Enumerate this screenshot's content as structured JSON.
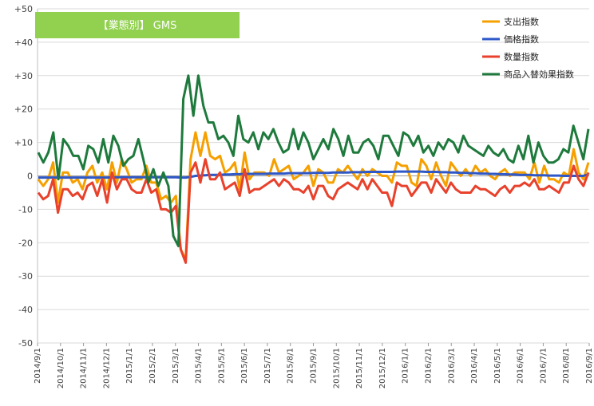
{
  "chart_data": {
    "type": "line",
    "title": "【業態別】 GMS",
    "ylim": [
      -50,
      50
    ],
    "yticks": [
      50,
      40,
      30,
      20,
      10,
      0,
      -10,
      -20,
      -30,
      -40,
      -50
    ],
    "ytick_labels": [
      "+50",
      "+40",
      "+30",
      "+20",
      "+10",
      "0",
      "-10",
      "-20",
      "-30",
      "-40",
      "-50"
    ],
    "x_tick_labels": [
      "2014/9/1",
      "2014/10/1",
      "2014/11/1",
      "2014/12/1",
      "2015/1/1",
      "2015/2/1",
      "2015/3/1",
      "2015/4/1",
      "2015/5/1",
      "2015/6/1",
      "2015/7/1",
      "2015/8/1",
      "2015/9/1",
      "2015/10/1",
      "2015/11/1",
      "2015/12/1",
      "2016/1/1",
      "2016/2/1",
      "2016/3/1",
      "2016/4/1",
      "2016/5/1",
      "2016/6/1",
      "2016/7/1",
      "2016/8/1",
      "2016/9/1"
    ],
    "grid": true,
    "legend_position": "top-right",
    "title_box_color": "#92d050",
    "series": [
      {
        "name": "支出指数",
        "color": "#f5a000",
        "values": [
          -1,
          -3,
          -1,
          4,
          -8,
          1,
          1,
          -2,
          -1,
          -4,
          1,
          3,
          -2,
          1,
          -4,
          4,
          -2,
          5,
          2,
          -2,
          -1,
          -1,
          3,
          -2,
          -2,
          -7,
          -6,
          -8,
          -6,
          -22,
          -25,
          5,
          13,
          6,
          13,
          6,
          5,
          6,
          1,
          2,
          4,
          -4,
          7,
          -1,
          1,
          1,
          1,
          0,
          5,
          1,
          2,
          3,
          -1,
          0,
          1,
          3,
          -3,
          2,
          1,
          -2,
          -2,
          2,
          1,
          3,
          1,
          -1,
          2,
          0,
          2,
          1,
          0,
          0,
          -2,
          4,
          3,
          3,
          -2,
          -3,
          5,
          3,
          -1,
          4,
          0,
          -3,
          4,
          2,
          0,
          2,
          0,
          3,
          1,
          2,
          0,
          -1,
          1,
          2,
          0,
          1,
          1,
          1,
          -1,
          4,
          -2,
          3,
          -1,
          -1,
          -2,
          1,
          0,
          8,
          1,
          -1,
          4
        ]
      },
      {
        "name": "価格指数",
        "color": "#2e58c8",
        "values": [
          -0.5,
          -0.5,
          -0.5,
          -0.5,
          -0.5,
          -0.5,
          -0.5,
          -0.5,
          -0.5,
          -0.5,
          -0.5,
          -0.5,
          -0.5,
          -0.5,
          -0.5,
          -0.4,
          -0.4,
          -0.4,
          -0.4,
          -0.4,
          -0.4,
          -0.4,
          -0.4,
          -0.4,
          -0.4,
          -0.4,
          -0.4,
          -0.4,
          -0.4,
          -0.5,
          -0.5,
          -0.3,
          0,
          0.1,
          0.2,
          0.3,
          0.3,
          0.3,
          0.4,
          0.4,
          0.5,
          0.5,
          0.6,
          0.6,
          0.6,
          0.6,
          0.6,
          0.7,
          0.7,
          0.7,
          0.7,
          0.8,
          0.8,
          0.8,
          0.8,
          0.8,
          0.9,
          0.9,
          0.9,
          0.9,
          1,
          1,
          1,
          1,
          1.1,
          1.1,
          1.1,
          1.2,
          1.2,
          1.2,
          1.2,
          1.2,
          1.2,
          1.3,
          1.3,
          1.3,
          1.3,
          1.3,
          1.3,
          1.2,
          1.2,
          1.2,
          1.1,
          1.1,
          1,
          1,
          0.9,
          0.9,
          0.8,
          0.8,
          0.7,
          0.7,
          0.6,
          0.6,
          0.5,
          0.5,
          0.4,
          0.4,
          0.3,
          0.3,
          0.3,
          0.2,
          0.2,
          0.2,
          0.1,
          0.1,
          0.1,
          0,
          0,
          0,
          0,
          0,
          0.5
        ]
      },
      {
        "name": "数量指数",
        "color": "#e8412c",
        "values": [
          -5,
          -7,
          -6,
          -1,
          -11,
          -4,
          -4,
          -6,
          -5,
          -7,
          -3,
          -2,
          -6,
          -1,
          -8,
          1,
          -4,
          -1,
          -1,
          -4,
          -5,
          -5,
          -1,
          -5,
          -4,
          -10,
          -10,
          -11,
          -9,
          -22,
          -26,
          1,
          4,
          -2,
          5,
          -1,
          -1,
          1,
          -4,
          -3,
          -2,
          -6,
          2,
          -5,
          -4,
          -4,
          -3,
          -2,
          -1,
          -3,
          -1,
          -2,
          -4,
          -4,
          -5,
          -3,
          -7,
          -3,
          -3,
          -6,
          -7,
          -4,
          -3,
          -2,
          -3,
          -4,
          -1,
          -4,
          -1,
          -3,
          -5,
          -5,
          -9,
          -2,
          -3,
          -3,
          -6,
          -4,
          -2,
          -2,
          -5,
          -1,
          -3,
          -5,
          -2,
          -4,
          -5,
          -5,
          -5,
          -3,
          -4,
          -4,
          -5,
          -6,
          -4,
          -3,
          -5,
          -3,
          -3,
          -2,
          -3,
          -1,
          -4,
          -4,
          -3,
          -4,
          -5,
          -2,
          -2,
          3,
          -1,
          -3,
          1
        ]
      },
      {
        "name": "商品入替効果指数",
        "color": "#1e7a3c",
        "values": [
          7,
          4,
          7,
          13,
          -1,
          11,
          9,
          6,
          6,
          2,
          9,
          8,
          4,
          11,
          4,
          12,
          9,
          3,
          5,
          6,
          11,
          5,
          -2,
          2,
          -3,
          1,
          -3,
          -18,
          -21,
          23,
          30,
          18,
          30,
          21,
          16,
          16,
          11,
          12,
          10,
          6,
          18,
          11,
          10,
          13,
          8,
          13,
          11,
          14,
          10,
          7,
          8,
          14,
          8,
          13,
          10,
          5,
          8,
          11,
          8,
          14,
          11,
          6,
          12,
          7,
          7,
          10,
          11,
          9,
          5,
          12,
          12,
          9,
          6,
          13,
          12,
          9,
          12,
          7,
          9,
          6,
          10,
          8,
          11,
          10,
          7,
          12,
          9,
          8,
          7,
          6,
          9,
          7,
          6,
          8,
          5,
          4,
          9,
          5,
          12,
          4,
          10,
          6,
          4,
          4,
          5,
          8,
          7,
          15,
          10,
          5,
          14
        ]
      }
    ]
  }
}
